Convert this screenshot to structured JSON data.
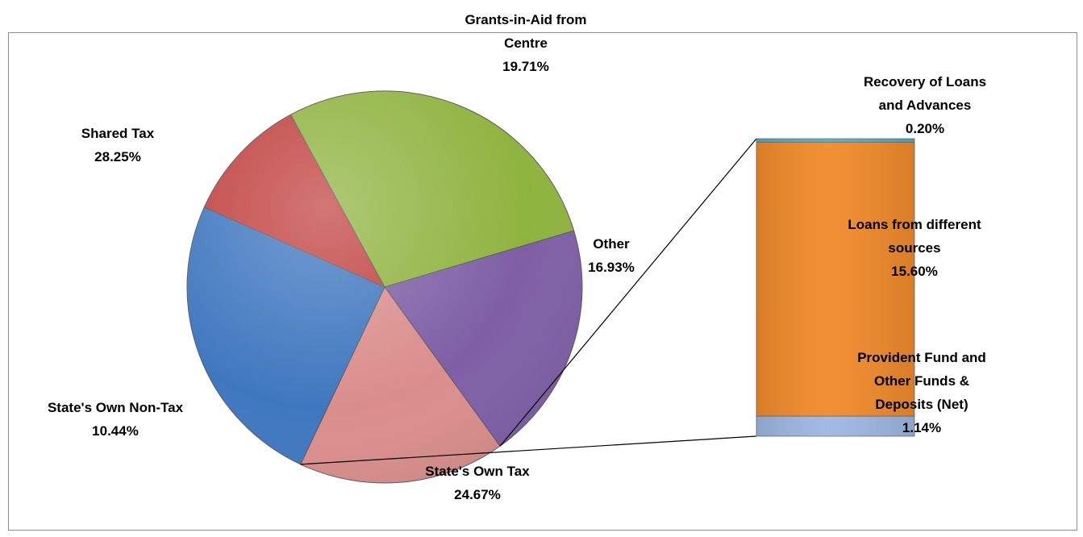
{
  "chart_data": {
    "type": "pie",
    "variant": "bar-of-pie",
    "slices": [
      {
        "label": "Shared Tax",
        "value": 28.25,
        "value_label": "28.25%",
        "color": "#8FB33F"
      },
      {
        "label": "Grants-in-Aid from Centre",
        "value": 19.71,
        "value_label": "19.71%",
        "color": "#7E5FA6"
      },
      {
        "label": "Other",
        "value": 16.93,
        "value_label": "16.93%",
        "color": "#DA8E8C"
      },
      {
        "label": "State's Own Tax",
        "value": 24.67,
        "value_label": "24.67%",
        "color": "#3F77BF"
      },
      {
        "label": "State's Own Non-Tax",
        "value": 10.44,
        "value_label": "10.44%",
        "color": "#C0413F"
      }
    ],
    "breakdown_of": "Other",
    "breakdown": [
      {
        "label": "Recovery of Loans and Advances",
        "value": 0.2,
        "value_label": "0.20%",
        "color": "#4DAFC9"
      },
      {
        "label": "Loans from different sources",
        "value": 15.6,
        "value_label": "15.60%",
        "color": "#F08A2A"
      },
      {
        "label": "Provident Fund and Other Funds & Deposits (Net)",
        "value": 1.14,
        "value_label": "1.14%",
        "color": "#9DB6E0"
      }
    ]
  }
}
